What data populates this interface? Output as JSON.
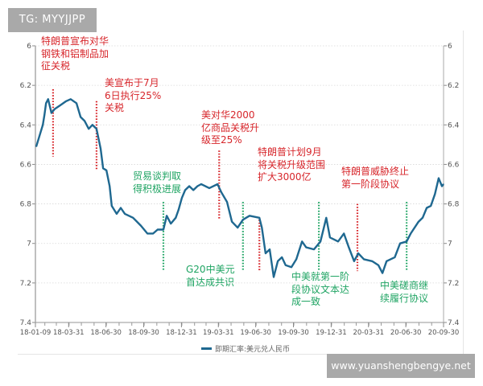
{
  "watermarks": {
    "top_left": "TG: MYYJJPP",
    "bottom_right": "www.yuanshengbengye.net"
  },
  "chart_data": {
    "type": "line",
    "title": "",
    "xlabel": "",
    "ylabel": "",
    "y_inverted": true,
    "ylim": [
      6,
      7.4
    ],
    "y_ticks": [
      "6",
      "6.2",
      "6.4",
      "6.6",
      "6.8",
      "7",
      "7.2",
      "7.4"
    ],
    "y_axis_both_sides": true,
    "xlim": [
      "2018-01-09",
      "2020-09-30"
    ],
    "x_ticks": [
      "18-01-09",
      "18-03-31",
      "18-06-30",
      "18-09-30",
      "18-12-31",
      "19-03-31",
      "19-06-30",
      "19-09-30",
      "19-12-31",
      "20-03-31",
      "20-06-30",
      "20-09-30"
    ],
    "grid": "horizontal dotted",
    "legend": {
      "position": "bottom",
      "label": "即期汇率:美元兑人民币"
    },
    "colors": {
      "series": "#1f6890",
      "negative_event": "#d7262b",
      "positive_event": "#1fa463"
    },
    "series": [
      {
        "name": "即期汇率:美元兑人民币",
        "points": [
          [
            "2018-01-11",
            6.51
          ],
          [
            "2018-01-27",
            6.4
          ],
          [
            "2018-01-31",
            6.35
          ],
          [
            "2018-02-04",
            6.29
          ],
          [
            "2018-02-09",
            6.27
          ],
          [
            "2018-02-17",
            6.34
          ],
          [
            "2018-02-25",
            6.32
          ],
          [
            "2018-03-11",
            6.3
          ],
          [
            "2018-03-25",
            6.28
          ],
          [
            "2018-04-05",
            6.27
          ],
          [
            "2018-04-19",
            6.29
          ],
          [
            "2018-04-29",
            6.36
          ],
          [
            "2018-05-09",
            6.38
          ],
          [
            "2018-05-19",
            6.42
          ],
          [
            "2018-05-28",
            6.4
          ],
          [
            "2018-06-07",
            6.42
          ],
          [
            "2018-06-17",
            6.52
          ],
          [
            "2018-06-23",
            6.62
          ],
          [
            "2018-07-01",
            6.63
          ],
          [
            "2018-07-09",
            6.71
          ],
          [
            "2018-07-14",
            6.81
          ],
          [
            "2018-07-26",
            6.85
          ],
          [
            "2018-08-05",
            6.82
          ],
          [
            "2018-08-15",
            6.85
          ],
          [
            "2018-09-04",
            6.87
          ],
          [
            "2018-09-23",
            6.91
          ],
          [
            "2018-10-09",
            6.95
          ],
          [
            "2018-10-23",
            6.95
          ],
          [
            "2018-11-03",
            6.93
          ],
          [
            "2018-11-17",
            6.93
          ],
          [
            "2018-11-25",
            6.86
          ],
          [
            "2018-12-05",
            6.9
          ],
          [
            "2018-12-17",
            6.87
          ],
          [
            "2018-12-24",
            6.83
          ],
          [
            "2019-01-01",
            6.77
          ],
          [
            "2019-01-09",
            6.73
          ],
          [
            "2019-01-19",
            6.71
          ],
          [
            "2019-01-29",
            6.73
          ],
          [
            "2019-02-08",
            6.71
          ],
          [
            "2019-02-17",
            6.7
          ],
          [
            "2019-03-09",
            6.72
          ],
          [
            "2019-03-29",
            6.7
          ],
          [
            "2019-04-07",
            6.74
          ],
          [
            "2019-04-21",
            6.79
          ],
          [
            "2019-05-03",
            6.89
          ],
          [
            "2019-05-17",
            6.92
          ],
          [
            "2019-05-30",
            6.88
          ],
          [
            "2019-06-15",
            6.86
          ],
          [
            "2019-07-09",
            6.87
          ],
          [
            "2019-07-15",
            6.92
          ],
          [
            "2019-07-24",
            7.05
          ],
          [
            "2019-08-03",
            7.03
          ],
          [
            "2019-08-13",
            7.17
          ],
          [
            "2019-08-23",
            7.09
          ],
          [
            "2019-09-02",
            7.07
          ],
          [
            "2019-09-11",
            7.11
          ],
          [
            "2019-09-25",
            7.12
          ],
          [
            "2019-10-07",
            7.08
          ],
          [
            "2019-10-21",
            6.99
          ],
          [
            "2019-10-31",
            7.02
          ],
          [
            "2019-11-19",
            7.03
          ],
          [
            "2019-12-05",
            6.99
          ],
          [
            "2019-12-19",
            6.87
          ],
          [
            "2019-12-28",
            6.97
          ],
          [
            "2020-01-07",
            6.98
          ],
          [
            "2020-01-17",
            6.99
          ],
          [
            "2020-01-31",
            6.95
          ],
          [
            "2020-02-12",
            7.02
          ],
          [
            "2020-02-25",
            7.09
          ],
          [
            "2020-03-06",
            7.05
          ],
          [
            "2020-03-20",
            7.08
          ],
          [
            "2020-04-09",
            7.09
          ],
          [
            "2020-04-24",
            7.11
          ],
          [
            "2020-05-04",
            7.15
          ],
          [
            "2020-05-14",
            7.09
          ],
          [
            "2020-06-03",
            7.07
          ],
          [
            "2020-06-16",
            7.0
          ],
          [
            "2020-07-02",
            6.99
          ],
          [
            "2020-07-12",
            6.95
          ],
          [
            "2020-07-31",
            6.89
          ],
          [
            "2020-08-10",
            6.87
          ],
          [
            "2020-08-20",
            6.82
          ],
          [
            "2020-08-30",
            6.81
          ],
          [
            "2020-09-09",
            6.75
          ],
          [
            "2020-09-18",
            6.67
          ],
          [
            "2020-09-26",
            6.71
          ],
          [
            "2020-09-30",
            6.7
          ]
        ]
      }
    ],
    "annotations": [
      {
        "date": "2018-02-21",
        "kind": "negative",
        "y_range": [
          6.22,
          6.56
        ],
        "text": "特朗普宣布对华\n钢铁和铝制品加\n征关税"
      },
      {
        "date": "2018-06-07",
        "kind": "negative",
        "y_range": [
          6.28,
          6.63
        ],
        "text": "美宣布于7月\n6日执行25%\n关税"
      },
      {
        "date": "2018-11-17",
        "kind": "positive",
        "y_range": [
          6.79,
          7.14
        ],
        "text": "贸易谈判取\n得积极进展"
      },
      {
        "date": "2019-04-02",
        "kind": "negative",
        "y_range": [
          6.53,
          6.88
        ],
        "text": "美对华2000\n亿商品关税升\n级至25%"
      },
      {
        "date": "2019-05-30",
        "kind": "positive",
        "y_range": [
          6.79,
          7.14
        ],
        "text": "G20中美元\n首达成共识"
      },
      {
        "date": "2019-07-09",
        "kind": "negative",
        "y_range": [
          6.88,
          7.14
        ],
        "text": "特朗普计划9月\n将关税升级范围\n扩大3000亿"
      },
      {
        "date": "2019-12-01",
        "kind": "positive",
        "y_range": [
          6.79,
          7.14
        ],
        "text": "中美就第一阶\n段协议文本达\n成一致"
      },
      {
        "date": "2020-03-04",
        "kind": "negative",
        "y_range": [
          6.8,
          7.14
        ],
        "text": "特朗普威胁终止\n第一阶段协议"
      },
      {
        "date": "2020-07-02",
        "kind": "positive",
        "y_range": [
          6.79,
          7.14
        ],
        "text": "中美磋商继\n续履行协议"
      }
    ]
  }
}
